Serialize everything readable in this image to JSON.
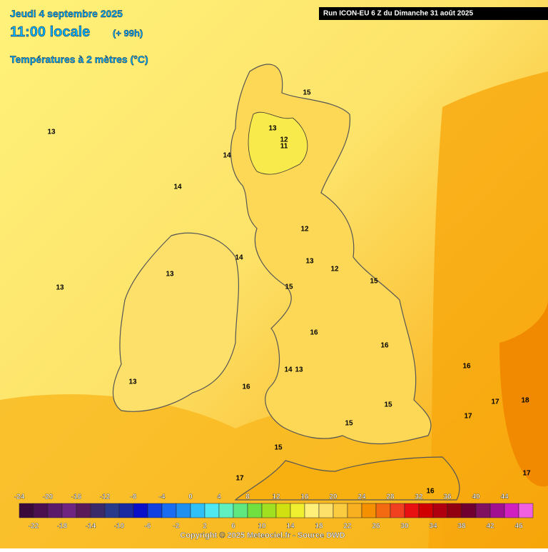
{
  "header": {
    "date": "Jeudi 4 septembre 2025",
    "time": "11:00 locale",
    "lead": "(+ 99h)",
    "parameter": "Températures à 2 mètres (°C)",
    "run": "Run ICON-EU 6 Z du Dimanche 31 août 2025"
  },
  "contour_labels": [
    13,
    15,
    13,
    12,
    11,
    14,
    14,
    12,
    14,
    13,
    13,
    12,
    13,
    15,
    15,
    16,
    16,
    14,
    13,
    16,
    13,
    16,
    15,
    17,
    18,
    17,
    15,
    15,
    17,
    17,
    16
  ],
  "scale": {
    "top_labels": [
      -24,
      -20,
      -16,
      -12,
      -8,
      -4,
      0,
      4,
      8,
      12,
      16,
      20,
      24,
      28,
      32,
      36,
      40,
      44
    ],
    "bottom_labels": [
      -22,
      -18,
      -14,
      -10,
      -6,
      -2,
      2,
      6,
      10,
      14,
      18,
      22,
      26,
      30,
      34,
      38,
      42,
      46
    ]
  },
  "footer": "Copyright © 2025 Meteociel.fr - Source DWD"
}
